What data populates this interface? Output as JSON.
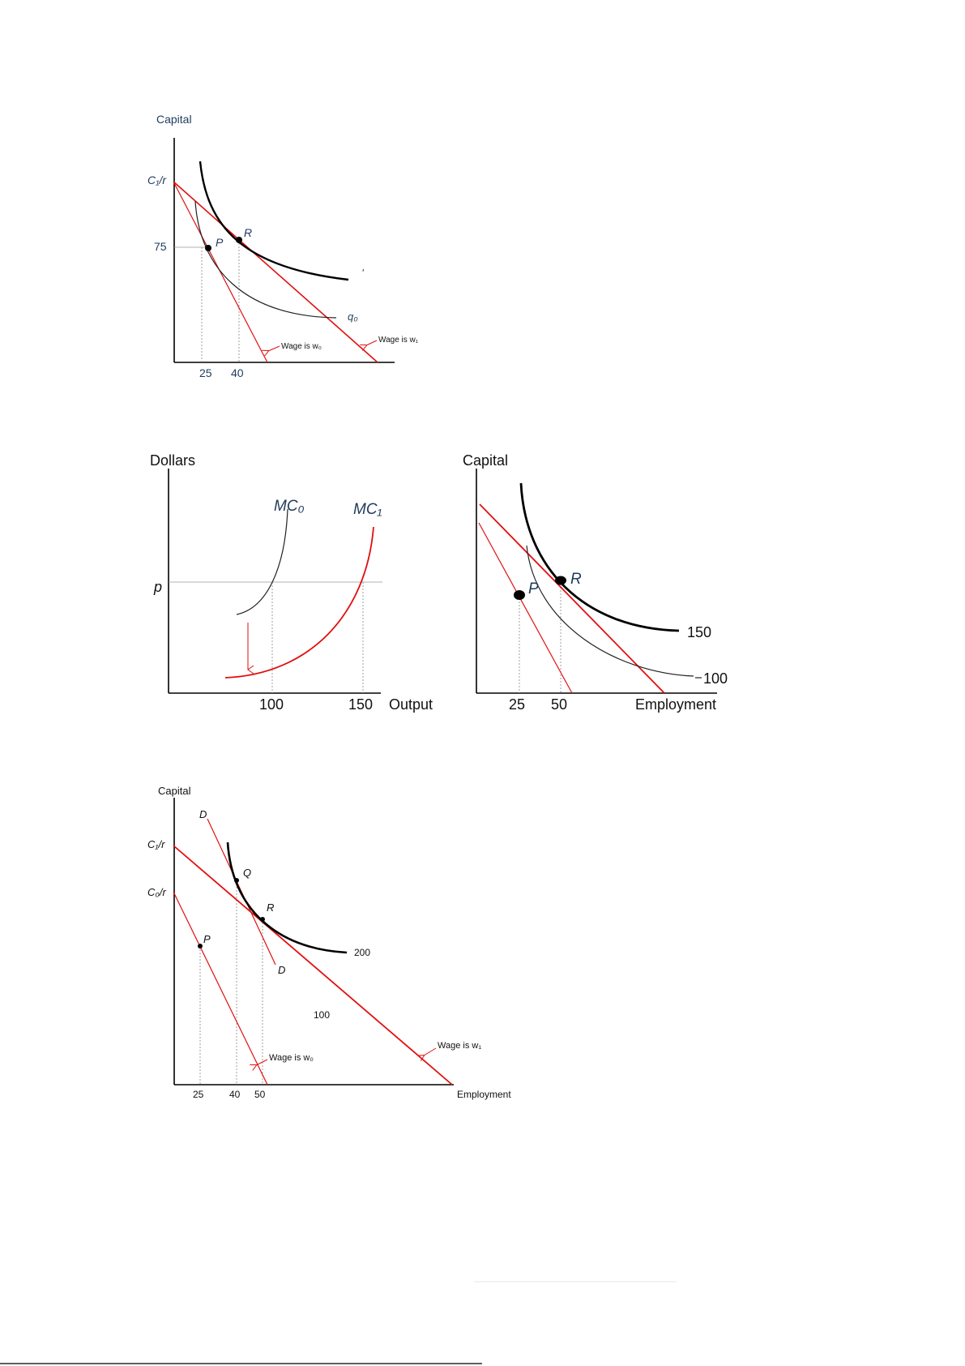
{
  "diagram1": {
    "y_axis_label": "Capital",
    "intercept_label": "C₁/r",
    "y_tick": "75",
    "x_ticks": [
      "25",
      "40"
    ],
    "point_p": "P",
    "point_r": "R",
    "isoquant_label": "q₀",
    "stray_mark": "′",
    "wage0_label": "Wage is w₀",
    "wage1_label": "Wage is w₁"
  },
  "diagram2a": {
    "y_axis_label": "Dollars",
    "price_label": "p",
    "mc0_label": "MC₀",
    "mc1_label": "MC₁",
    "x_ticks": [
      "100",
      "150"
    ],
    "x_axis_label": "Output"
  },
  "diagram2b": {
    "y_axis_label": "Capital",
    "point_p": "P",
    "point_r": "R",
    "isoquant_high": "150",
    "isoquant_low": "100",
    "x_ticks": [
      "25",
      "50"
    ],
    "x_axis_label": "Employment"
  },
  "diagram3": {
    "y_axis_label": "Capital",
    "intercept1": "C₁/r",
    "intercept0": "C₀/r",
    "d_top": "D",
    "d_bottom": "D",
    "point_q": "Q",
    "point_r": "R",
    "point_p": "P",
    "isoquant_high": "200",
    "isoquant_low": "100",
    "wage0_label": "Wage is w₀",
    "wage1_label": "Wage is w₁",
    "x_ticks": [
      "25",
      "40",
      "50"
    ],
    "x_axis_label": "Employment"
  }
}
